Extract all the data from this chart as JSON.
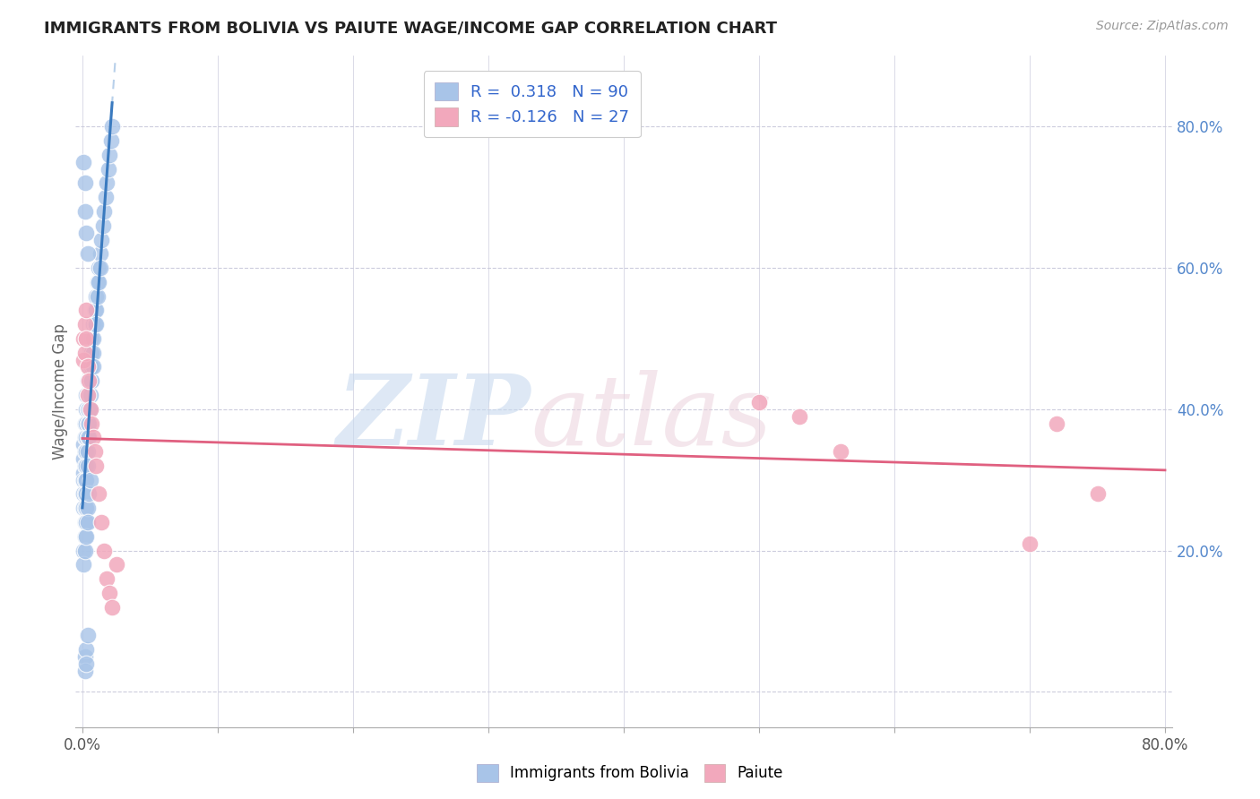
{
  "title": "IMMIGRANTS FROM BOLIVIA VS PAIUTE WAGE/INCOME GAP CORRELATION CHART",
  "source": "Source: ZipAtlas.com",
  "ylabel": "Wage/Income Gap",
  "blue_color": "#a8c4e8",
  "pink_color": "#f2a8bc",
  "trend_blue_solid": "#3a7abf",
  "trend_pink": "#e06080",
  "trend_dash_blue": "#b8d0ea",
  "xlim": [
    -0.005,
    0.805
  ],
  "ylim": [
    -0.05,
    0.9
  ],
  "bolivia_x": [
    0.001,
    0.001,
    0.001,
    0.001,
    0.001,
    0.001,
    0.002,
    0.002,
    0.002,
    0.002,
    0.002,
    0.002,
    0.002,
    0.002,
    0.003,
    0.003,
    0.003,
    0.003,
    0.003,
    0.003,
    0.003,
    0.003,
    0.003,
    0.003,
    0.004,
    0.004,
    0.004,
    0.004,
    0.004,
    0.004,
    0.004,
    0.005,
    0.005,
    0.005,
    0.005,
    0.005,
    0.005,
    0.006,
    0.006,
    0.006,
    0.006,
    0.006,
    0.007,
    0.007,
    0.007,
    0.007,
    0.008,
    0.008,
    0.008,
    0.008,
    0.009,
    0.009,
    0.01,
    0.01,
    0.01,
    0.011,
    0.011,
    0.012,
    0.012,
    0.013,
    0.013,
    0.014,
    0.015,
    0.016,
    0.017,
    0.018,
    0.019,
    0.02,
    0.021,
    0.022,
    0.001,
    0.001,
    0.002,
    0.002,
    0.003,
    0.003,
    0.004,
    0.004,
    0.005,
    0.006,
    0.001,
    0.002,
    0.002,
    0.003,
    0.004,
    0.002,
    0.003,
    0.002,
    0.003,
    0.004
  ],
  "bolivia_y": [
    0.35,
    0.33,
    0.31,
    0.3,
    0.28,
    0.26,
    0.38,
    0.36,
    0.34,
    0.32,
    0.3,
    0.28,
    0.26,
    0.24,
    0.42,
    0.4,
    0.38,
    0.36,
    0.34,
    0.32,
    0.3,
    0.28,
    0.26,
    0.24,
    0.44,
    0.42,
    0.4,
    0.38,
    0.36,
    0.34,
    0.32,
    0.46,
    0.44,
    0.42,
    0.4,
    0.38,
    0.36,
    0.48,
    0.46,
    0.44,
    0.42,
    0.4,
    0.5,
    0.48,
    0.46,
    0.44,
    0.52,
    0.5,
    0.48,
    0.46,
    0.54,
    0.52,
    0.56,
    0.54,
    0.52,
    0.58,
    0.56,
    0.6,
    0.58,
    0.62,
    0.6,
    0.64,
    0.66,
    0.68,
    0.7,
    0.72,
    0.74,
    0.76,
    0.78,
    0.8,
    0.2,
    0.18,
    0.22,
    0.2,
    0.24,
    0.22,
    0.26,
    0.24,
    0.28,
    0.3,
    0.75,
    0.72,
    0.68,
    0.65,
    0.62,
    0.05,
    0.06,
    0.03,
    0.04,
    0.08
  ],
  "paiute_x": [
    0.001,
    0.001,
    0.002,
    0.002,
    0.003,
    0.003,
    0.004,
    0.004,
    0.005,
    0.006,
    0.007,
    0.008,
    0.009,
    0.01,
    0.012,
    0.014,
    0.016,
    0.018,
    0.02,
    0.022,
    0.025,
    0.5,
    0.53,
    0.56,
    0.7,
    0.72,
    0.75
  ],
  "paiute_y": [
    0.5,
    0.47,
    0.52,
    0.48,
    0.54,
    0.5,
    0.46,
    0.42,
    0.44,
    0.4,
    0.38,
    0.36,
    0.34,
    0.32,
    0.28,
    0.24,
    0.2,
    0.16,
    0.14,
    0.12,
    0.18,
    0.41,
    0.39,
    0.34,
    0.21,
    0.38,
    0.28
  ]
}
